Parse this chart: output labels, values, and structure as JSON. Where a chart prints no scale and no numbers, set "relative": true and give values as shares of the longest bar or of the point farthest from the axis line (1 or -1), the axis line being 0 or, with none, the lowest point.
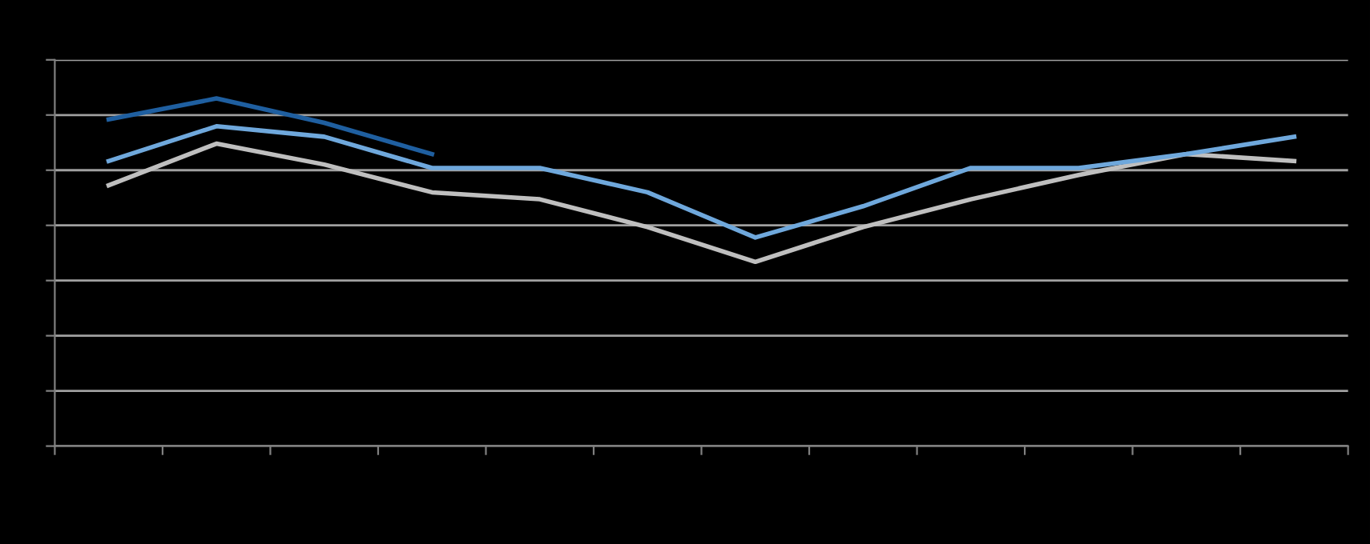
{
  "chart_data": {
    "type": "line",
    "relative": true,
    "grid": "y",
    "categories": [
      null,
      null,
      null,
      null,
      null,
      null,
      null,
      null,
      null,
      null,
      null,
      null
    ],
    "series": [
      {
        "color": "#bfbfbf",
        "values": [
          0.75,
          0.87,
          0.81,
          0.73,
          0.71,
          0.63,
          0.53,
          0.63,
          0.71,
          0.78,
          0.84,
          0.82
        ]
      },
      {
        "color": "#6fa8dc",
        "values": [
          0.82,
          0.92,
          0.89,
          0.8,
          0.8,
          0.73,
          0.6,
          0.69,
          0.8,
          0.8,
          0.84,
          0.89
        ]
      },
      {
        "color": "#1f5fa0",
        "values": [
          0.94,
          1,
          0.93,
          0.84,
          null,
          null,
          null,
          null,
          null,
          null,
          null,
          null
        ]
      }
    ]
  }
}
